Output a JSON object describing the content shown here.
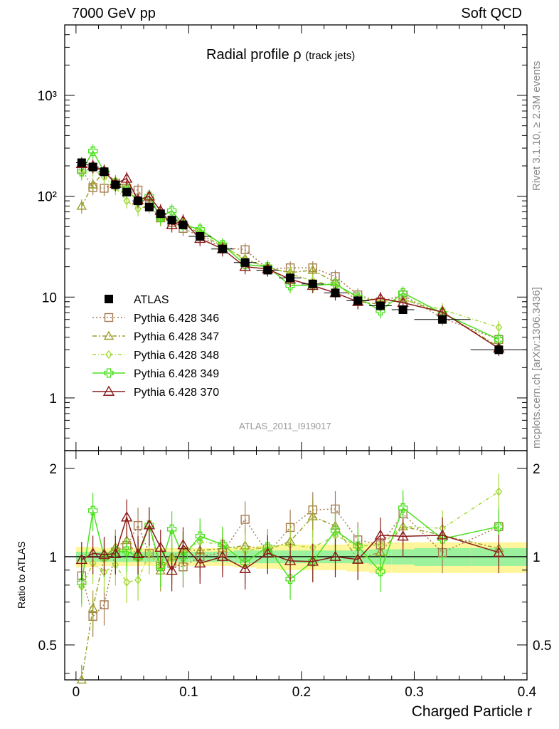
{
  "header": {
    "left": "7000 GeV pp",
    "right": "Soft QCD"
  },
  "side": {
    "rivet": "Rivet 3.1.10, ≥ 2.3M events",
    "mcplots": "mcplots.cern.ch [arXiv:1306.3436]"
  },
  "chart_data": {
    "type": "line",
    "title": "Radial profile ρ",
    "title_small": "(track jets)",
    "analysis_label": "ATLAS_2011_I919017",
    "xlabel": "Charged Particle r",
    "ylabel_ratio": "Ratio to ATLAS",
    "xlim": [
      -0.01,
      0.4
    ],
    "main_ylim": [
      0.3,
      5000
    ],
    "main_yscale": "log",
    "ratio_ylim": [
      0.38,
      2.3
    ],
    "ratio_yscale": "log",
    "x_ticks": [
      {
        "v": 0,
        "t": "0"
      },
      {
        "v": 0.1,
        "t": "0.1"
      },
      {
        "v": 0.2,
        "t": "0.2"
      },
      {
        "v": 0.3,
        "t": "0.3"
      },
      {
        "v": 0.4,
        "t": "0.4"
      }
    ],
    "main_y_ticks": [
      {
        "v": 1,
        "t": "1"
      },
      {
        "v": 10,
        "t": "10"
      },
      {
        "v": 100,
        "t": "10²"
      },
      {
        "v": 1000,
        "t": "10³"
      }
    ],
    "ratio_y_ticks": [
      {
        "v": 0.5,
        "t": "0.5"
      },
      {
        "v": 1,
        "t": "1"
      },
      {
        "v": 2,
        "t": "2"
      }
    ],
    "x": [
      0.005,
      0.015,
      0.025,
      0.035,
      0.045,
      0.055,
      0.065,
      0.075,
      0.085,
      0.095,
      0.11,
      0.13,
      0.15,
      0.17,
      0.19,
      0.21,
      0.23,
      0.25,
      0.27,
      0.29,
      0.325,
      0.375
    ],
    "x_err": [
      0.005,
      0.005,
      0.005,
      0.005,
      0.005,
      0.005,
      0.005,
      0.005,
      0.005,
      0.005,
      0.01,
      0.01,
      0.01,
      0.01,
      0.01,
      0.01,
      0.01,
      0.01,
      0.01,
      0.01,
      0.025,
      0.025
    ],
    "data": {
      "name": "ATLAS",
      "color": "#000000",
      "values": [
        215,
        195,
        175,
        130,
        110,
        90,
        78,
        67,
        58,
        52,
        40,
        30,
        22,
        18.5,
        15.5,
        13.5,
        11,
        9.2,
        8.2,
        7.5,
        6,
        3
      ],
      "band_yellow": [
        0.08,
        0.08,
        0.07,
        0.07,
        0.07,
        0.07,
        0.07,
        0.07,
        0.07,
        0.07,
        0.07,
        0.07,
        0.08,
        0.09,
        0.1,
        0.1,
        0.1,
        0.11,
        0.12,
        0.12,
        0.12,
        0.12
      ],
      "band_green": [
        0.04,
        0.04,
        0.04,
        0.04,
        0.04,
        0.04,
        0.04,
        0.04,
        0.04,
        0.04,
        0.04,
        0.04,
        0.05,
        0.05,
        0.05,
        0.05,
        0.05,
        0.05,
        0.06,
        0.06,
        0.07,
        0.07
      ]
    },
    "series": [
      {
        "name": "Pythia 6.428 346",
        "color": "#a67c52",
        "marker": "square",
        "dash": "2,3",
        "values": [
          185,
          122,
          120,
          135,
          120,
          115,
          80,
          62,
          55,
          48,
          40,
          31,
          29.5,
          19,
          19.5,
          19.5,
          16,
          10.5,
          9,
          10.5,
          6.2,
          3.8
        ]
      },
      {
        "name": "Pythia 6.428 347",
        "color": "#9c9c2a",
        "marker": "triangle",
        "dash": "6,3,2,3",
        "values": [
          80,
          130,
          175,
          140,
          125,
          90,
          100,
          60,
          58,
          55,
          42,
          32,
          24,
          19.5,
          17.5,
          18.5,
          14,
          9,
          8.5,
          9.5,
          7.1,
          3.2
        ]
      },
      {
        "name": "Pythia 6.428 348",
        "color": "#a3d936",
        "marker": "diamond",
        "dash": "5,3,1,3",
        "values": [
          170,
          185,
          155,
          122,
          90,
          75,
          80,
          62,
          57,
          55,
          45,
          33,
          23,
          20,
          17,
          14.5,
          13,
          10,
          9,
          9.5,
          7.5,
          5
        ]
      },
      {
        "name": "Pythia 6.428 349",
        "color": "#49e01d",
        "marker": "cross",
        "dash": "",
        "values": [
          175,
          280,
          175,
          135,
          115,
          90,
          100,
          62,
          72,
          52,
          47,
          33,
          21,
          20,
          13,
          13,
          13.5,
          10,
          7.3,
          11,
          6.9,
          3.8
        ]
      },
      {
        "name": "Pythia 6.428 370",
        "color": "#8b1a1a",
        "marker": "triangle-open",
        "dash": "",
        "values": [
          210,
          200,
          178,
          133,
          150,
          92,
          100,
          72,
          52,
          57,
          38,
          30,
          20,
          19,
          15,
          13,
          11,
          9,
          9.7,
          8.8,
          7.1,
          3.1
        ]
      }
    ],
    "legend_position": "center-left"
  }
}
